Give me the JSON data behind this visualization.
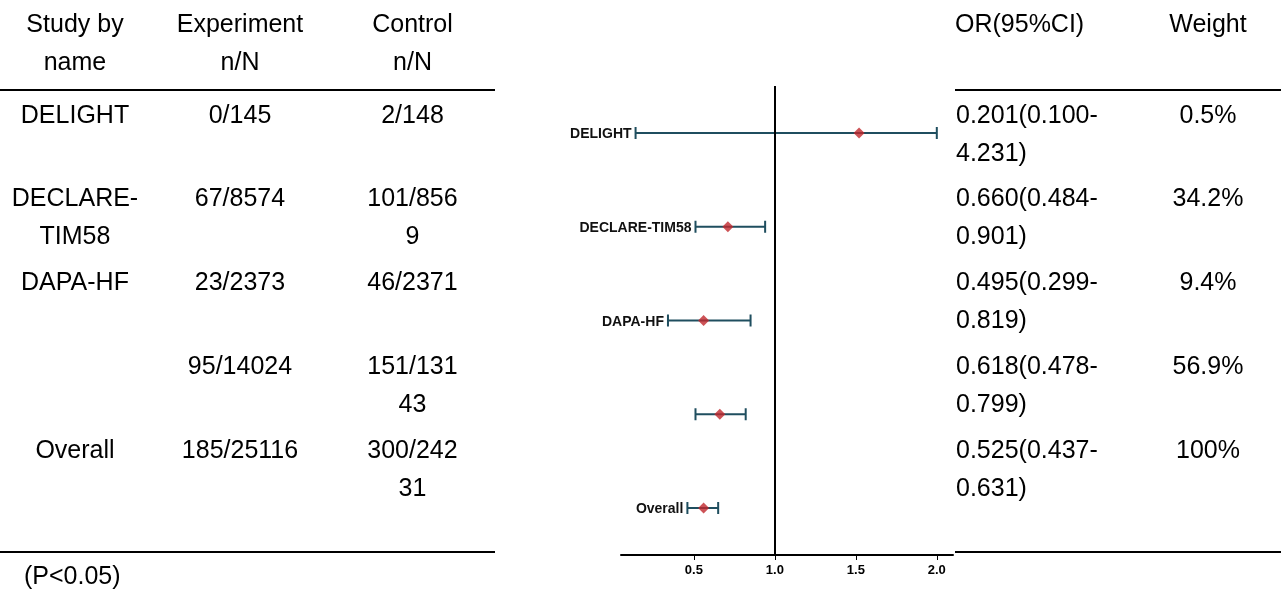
{
  "chart_data": [
    {
      "type": "other",
      "categories": [
        "Study by name",
        "Experiment n/N",
        "Control n/N"
      ],
      "cell_labels": [
        [
          "DELIGHT",
          "0/145",
          "2/148"
        ],
        [
          "DECLARE-TIM58",
          "67/8574",
          "101/8569"
        ],
        [
          "DAPA-HF",
          "23/2373",
          "46/2371"
        ],
        [
          null,
          "95/14024",
          "151/13143"
        ],
        [
          "Overall",
          "185/25116",
          "300/24231"
        ]
      ],
      "annotations": [
        "(P<0.05)"
      ]
    },
    {
      "type": "scatter",
      "orientation": "horizontal",
      "categories": [
        "DELIGHT",
        "DECLARE-TIM58",
        "DAPA-HF",
        null,
        "Overall"
      ],
      "values": [
        1.52,
        0.71,
        0.56,
        0.66,
        0.56
      ],
      "errors": [
        [
          0.14,
          2.0
        ],
        [
          0.51,
          0.94
        ],
        [
          0.34,
          0.85
        ],
        [
          0.51,
          0.82
        ],
        [
          0.46,
          0.65
        ]
      ],
      "color": "#c0282d",
      "marker": "diamond",
      "grid": false,
      "xlim": [
        0.05,
        2.1
      ],
      "xticks": [
        0.5,
        {
          "value": 1,
          "label": "1.0"
        },
        1.5,
        {
          "value": 2,
          "label": "2.0"
        }
      ],
      "ref_lines": [
        {
          "axis": "x",
          "value": 1
        }
      ]
    },
    {
      "type": "other",
      "categories": [
        "OR(95%CI)",
        "Weight"
      ],
      "cell_labels": [
        [
          "0.201(0.100-4.231)",
          "0.5%"
        ],
        [
          "0.660(0.484-0.901)",
          "34.2%"
        ],
        [
          "0.495(0.299-0.819)",
          "9.4%"
        ],
        [
          "0.618(0.478-0.799)",
          "56.9%"
        ],
        [
          "0.525(0.437-0.631)",
          "100%"
        ]
      ]
    }
  ]
}
